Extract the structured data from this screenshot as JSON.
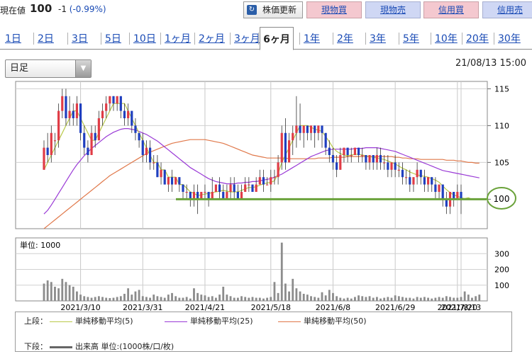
{
  "header": {
    "price_label": "現在値",
    "price": "100",
    "change": "-1",
    "change_pct": "(-0.99%)",
    "buttons": {
      "update": "株価更新",
      "buy_cash": "現物買",
      "sell_cash": "現物売",
      "buy_margin": "信用買",
      "sell_margin": "信用売"
    }
  },
  "tabs": [
    "1日",
    "2日",
    "3日",
    "5日",
    "10日",
    "1ヶ月",
    "2ヶ月",
    "3ヶ月",
    "6ヶ月",
    "1年",
    "2年",
    "3年",
    "5年",
    "10年",
    "20年",
    "30年"
  ],
  "selected_tab": "6ヶ月",
  "chart_type_select": "日足",
  "timestamp": "21/08/13 15:00",
  "chart_data": {
    "type": "candlestick",
    "price_axis": {
      "ticks": [
        "115",
        "110",
        "105",
        "100"
      ],
      "ylim": [
        96,
        116
      ]
    },
    "volume_axis": {
      "unit_label": "単位: 1000",
      "ticks": [
        "300",
        "200",
        "100"
      ],
      "ylim": [
        0,
        400
      ]
    },
    "date_labels": [
      "2021/3/10",
      "2021/3/31",
      "2021/4/21",
      "2021/5/18",
      "2021/6/8",
      "2021/6/29",
      "2021/7/20",
      "2021/8/13"
    ],
    "support_line_value": 100,
    "highlight_label": "100",
    "candles": [
      {
        "o": 104,
        "c": 107,
        "h": 108,
        "l": 104
      },
      {
        "o": 107,
        "c": 106,
        "h": 109,
        "l": 105
      },
      {
        "o": 106,
        "c": 109,
        "h": 110,
        "l": 105
      },
      {
        "o": 108,
        "c": 108,
        "h": 109,
        "l": 106
      },
      {
        "o": 108,
        "c": 112,
        "h": 113,
        "l": 107
      },
      {
        "o": 112,
        "c": 114,
        "h": 115,
        "l": 111
      },
      {
        "o": 114,
        "c": 111,
        "h": 115,
        "l": 110
      },
      {
        "o": 111,
        "c": 112,
        "h": 114,
        "l": 110
      },
      {
        "o": 112,
        "c": 111,
        "h": 113,
        "l": 110
      },
      {
        "o": 111,
        "c": 113,
        "h": 114,
        "l": 110
      },
      {
        "o": 113,
        "c": 109,
        "h": 113,
        "l": 108
      },
      {
        "o": 109,
        "c": 107,
        "h": 110,
        "l": 106
      },
      {
        "o": 107,
        "c": 106,
        "h": 108,
        "l": 105
      },
      {
        "o": 106,
        "c": 109,
        "h": 110,
        "l": 106
      },
      {
        "o": 109,
        "c": 108,
        "h": 110,
        "l": 107
      },
      {
        "o": 108,
        "c": 111,
        "h": 112,
        "l": 108
      },
      {
        "o": 111,
        "c": 112,
        "h": 113,
        "l": 110
      },
      {
        "o": 112,
        "c": 113,
        "h": 114,
        "l": 111
      },
      {
        "o": 113,
        "c": 114,
        "h": 114,
        "l": 112
      },
      {
        "o": 114,
        "c": 113,
        "h": 114,
        "l": 112
      },
      {
        "o": 113,
        "c": 114,
        "h": 114,
        "l": 112
      },
      {
        "o": 114,
        "c": 112,
        "h": 114,
        "l": 111
      },
      {
        "o": 112,
        "c": 111,
        "h": 113,
        "l": 110
      },
      {
        "o": 111,
        "c": 112,
        "h": 113,
        "l": 110
      },
      {
        "o": 112,
        "c": 110,
        "h": 112,
        "l": 109
      },
      {
        "o": 110,
        "c": 109,
        "h": 111,
        "l": 108
      },
      {
        "o": 109,
        "c": 108,
        "h": 109,
        "l": 107
      },
      {
        "o": 108,
        "c": 106,
        "h": 109,
        "l": 105
      },
      {
        "o": 106,
        "c": 107,
        "h": 108,
        "l": 105
      },
      {
        "o": 107,
        "c": 105,
        "h": 108,
        "l": 104
      },
      {
        "o": 105,
        "c": 105,
        "h": 106,
        "l": 104
      },
      {
        "o": 105,
        "c": 103,
        "h": 106,
        "l": 103
      },
      {
        "o": 103,
        "c": 104,
        "h": 105,
        "l": 102
      },
      {
        "o": 104,
        "c": 102,
        "h": 104,
        "l": 102
      },
      {
        "o": 102,
        "c": 103,
        "h": 103,
        "l": 101
      },
      {
        "o": 103,
        "c": 102,
        "h": 104,
        "l": 101
      },
      {
        "o": 102,
        "c": 103,
        "h": 103,
        "l": 102
      },
      {
        "o": 103,
        "c": 102,
        "h": 103,
        "l": 101
      },
      {
        "o": 102,
        "c": 101,
        "h": 102,
        "l": 100
      },
      {
        "o": 101,
        "c": 101,
        "h": 102,
        "l": 100
      },
      {
        "o": 101,
        "c": 100,
        "h": 101,
        "l": 99
      },
      {
        "o": 100,
        "c": 101,
        "h": 102,
        "l": 99
      },
      {
        "o": 101,
        "c": 100,
        "h": 102,
        "l": 98
      },
      {
        "o": 100,
        "c": 101,
        "h": 101,
        "l": 100
      },
      {
        "o": 101,
        "c": 101,
        "h": 102,
        "l": 100
      },
      {
        "o": 101,
        "c": 100,
        "h": 101,
        "l": 99
      },
      {
        "o": 100,
        "c": 101,
        "h": 103,
        "l": 100
      },
      {
        "o": 101,
        "c": 102,
        "h": 102,
        "l": 101
      },
      {
        "o": 102,
        "c": 101,
        "h": 103,
        "l": 100
      },
      {
        "o": 101,
        "c": 100,
        "h": 102,
        "l": 100
      },
      {
        "o": 100,
        "c": 101,
        "h": 102,
        "l": 100
      },
      {
        "o": 101,
        "c": 102,
        "h": 103,
        "l": 100
      },
      {
        "o": 102,
        "c": 101,
        "h": 103,
        "l": 100
      },
      {
        "o": 101,
        "c": 100,
        "h": 102,
        "l": 100
      },
      {
        "o": 100,
        "c": 101,
        "h": 102,
        "l": 100
      },
      {
        "o": 101,
        "c": 102,
        "h": 103,
        "l": 101
      },
      {
        "o": 102,
        "c": 102,
        "h": 103,
        "l": 101
      },
      {
        "o": 102,
        "c": 101,
        "h": 102,
        "l": 101
      },
      {
        "o": 101,
        "c": 102,
        "h": 103,
        "l": 101
      },
      {
        "o": 102,
        "c": 103,
        "h": 104,
        "l": 102
      },
      {
        "o": 103,
        "c": 102,
        "h": 104,
        "l": 101
      },
      {
        "o": 102,
        "c": 102,
        "h": 103,
        "l": 102
      },
      {
        "o": 102,
        "c": 103,
        "h": 104,
        "l": 101
      },
      {
        "o": 103,
        "c": 103,
        "h": 104,
        "l": 102
      },
      {
        "o": 103,
        "c": 105,
        "h": 106,
        "l": 102
      },
      {
        "o": 105,
        "c": 109,
        "h": 110,
        "l": 104
      },
      {
        "o": 109,
        "c": 105,
        "h": 111,
        "l": 104
      },
      {
        "o": 105,
        "c": 108,
        "h": 109,
        "l": 105
      },
      {
        "o": 108,
        "c": 109,
        "h": 110,
        "l": 106
      },
      {
        "o": 109,
        "c": 110,
        "h": 114,
        "l": 107
      },
      {
        "o": 110,
        "c": 109,
        "h": 113,
        "l": 108
      },
      {
        "o": 109,
        "c": 110,
        "h": 110,
        "l": 107
      },
      {
        "o": 110,
        "c": 109,
        "h": 110,
        "l": 108
      },
      {
        "o": 109,
        "c": 110,
        "h": 110,
        "l": 108
      },
      {
        "o": 110,
        "c": 109,
        "h": 110,
        "l": 107
      },
      {
        "o": 109,
        "c": 110,
        "h": 110,
        "l": 108
      },
      {
        "o": 110,
        "c": 109,
        "h": 110,
        "l": 107
      },
      {
        "o": 109,
        "c": 107,
        "h": 109,
        "l": 106
      },
      {
        "o": 107,
        "c": 106,
        "h": 108,
        "l": 105
      },
      {
        "o": 106,
        "c": 105,
        "h": 107,
        "l": 104
      },
      {
        "o": 105,
        "c": 104,
        "h": 106,
        "l": 103
      },
      {
        "o": 104,
        "c": 106,
        "h": 107,
        "l": 104
      },
      {
        "o": 106,
        "c": 107,
        "h": 107,
        "l": 105
      },
      {
        "o": 107,
        "c": 106,
        "h": 107,
        "l": 105
      },
      {
        "o": 106,
        "c": 106,
        "h": 107,
        "l": 105
      },
      {
        "o": 106,
        "c": 107,
        "h": 107,
        "l": 106
      },
      {
        "o": 107,
        "c": 106,
        "h": 107,
        "l": 105
      },
      {
        "o": 106,
        "c": 106,
        "h": 107,
        "l": 105
      },
      {
        "o": 106,
        "c": 105,
        "h": 106,
        "l": 104
      },
      {
        "o": 105,
        "c": 106,
        "h": 106,
        "l": 104
      },
      {
        "o": 106,
        "c": 105,
        "h": 106,
        "l": 104
      },
      {
        "o": 105,
        "c": 106,
        "h": 107,
        "l": 104
      },
      {
        "o": 106,
        "c": 105,
        "h": 107,
        "l": 104
      },
      {
        "o": 105,
        "c": 105,
        "h": 106,
        "l": 104
      },
      {
        "o": 105,
        "c": 104,
        "h": 106,
        "l": 103
      },
      {
        "o": 104,
        "c": 105,
        "h": 105,
        "l": 103
      },
      {
        "o": 105,
        "c": 104,
        "h": 106,
        "l": 103
      },
      {
        "o": 104,
        "c": 104,
        "h": 105,
        "l": 103
      },
      {
        "o": 104,
        "c": 103,
        "h": 105,
        "l": 102
      },
      {
        "o": 103,
        "c": 103,
        "h": 104,
        "l": 102
      },
      {
        "o": 103,
        "c": 102,
        "h": 104,
        "l": 101
      },
      {
        "o": 102,
        "c": 103,
        "h": 103,
        "l": 101
      },
      {
        "o": 103,
        "c": 104,
        "h": 105,
        "l": 102
      },
      {
        "o": 104,
        "c": 103,
        "h": 104,
        "l": 102
      },
      {
        "o": 103,
        "c": 102,
        "h": 104,
        "l": 101
      },
      {
        "o": 102,
        "c": 103,
        "h": 103,
        "l": 101
      },
      {
        "o": 103,
        "c": 102,
        "h": 103,
        "l": 101
      },
      {
        "o": 102,
        "c": 101,
        "h": 103,
        "l": 100
      },
      {
        "o": 101,
        "c": 102,
        "h": 102,
        "l": 100
      },
      {
        "o": 102,
        "c": 100,
        "h": 102,
        "l": 99
      },
      {
        "o": 100,
        "c": 99,
        "h": 101,
        "l": 98
      },
      {
        "o": 99,
        "c": 101,
        "h": 101,
        "l": 98
      },
      {
        "o": 101,
        "c": 100,
        "h": 101,
        "l": 99
      },
      {
        "o": 100,
        "c": 101,
        "h": 102,
        "l": 100
      },
      {
        "o": 101,
        "c": 100,
        "h": 102,
        "l": 98
      }
    ],
    "volumes": [
      110,
      130,
      120,
      90,
      80,
      140,
      120,
      100,
      90,
      60,
      40,
      30,
      25,
      20,
      25,
      30,
      25,
      20,
      18,
      20,
      25,
      30,
      45,
      80,
      40,
      60,
      70,
      30,
      25,
      20,
      40,
      30,
      25,
      20,
      40,
      50,
      30,
      20,
      20,
      25,
      15,
      80,
      50,
      40,
      35,
      25,
      30,
      20,
      40,
      90,
      40,
      30,
      20,
      20,
      30,
      25,
      20,
      25,
      20,
      20,
      15,
      20,
      25,
      120,
      50,
      370,
      110,
      60,
      140,
      80,
      60,
      45,
      40,
      30,
      25,
      20,
      55,
      35,
      70,
      50,
      30,
      20,
      15,
      20,
      15,
      25,
      35,
      30,
      25,
      30,
      20,
      25,
      15,
      20,
      25,
      20,
      35,
      30,
      25,
      20,
      20,
      15,
      25,
      20,
      25,
      20,
      15,
      20,
      25,
      20,
      30,
      25,
      20,
      20,
      25,
      60,
      40,
      20,
      30,
      40
    ],
    "ma5": [
      104,
      105,
      106,
      107,
      108,
      109,
      110,
      111,
      112,
      112,
      111,
      110,
      109,
      108,
      108,
      109,
      110,
      111,
      112,
      113,
      113,
      113,
      113,
      112,
      111,
      110,
      109,
      108,
      107,
      106,
      105,
      105,
      104,
      104,
      103,
      103,
      103,
      102,
      102,
      101.5,
      101,
      100.8,
      100.5,
      100.6,
      100.7,
      100.8,
      100.9,
      101,
      101.1,
      101.2,
      101.1,
      101,
      101,
      101,
      101.2,
      101.4,
      101.6,
      101.6,
      101.7,
      101.9,
      102.1,
      102.2,
      102.3,
      102.5,
      103.5,
      105,
      106,
      107,
      108,
      109,
      110,
      110,
      110,
      109.8,
      109.5,
      109.4,
      109.2,
      108.5,
      107.8,
      107,
      106.5,
      106.2,
      106,
      105.9,
      106,
      106.1,
      106.1,
      106,
      105.9,
      105.8,
      105.7,
      105.6,
      105.5,
      105.4,
      105.2,
      105,
      104.8,
      104.5,
      104.2,
      104,
      103.7,
      103.5,
      103.3,
      103.2,
      103.1,
      103,
      102.8,
      102.6,
      102.3,
      101.8,
      101.3,
      100.9,
      100.6,
      100.4,
      100.2,
      100.1,
      100.2,
      100
    ],
    "ma25": [
      98,
      98.5,
      99.2,
      100,
      100.8,
      101.6,
      102.4,
      103.2,
      104,
      104.7,
      105.3,
      105.9,
      106.4,
      106.9,
      107.3,
      107.7,
      108.1,
      108.5,
      108.8,
      109.1,
      109.3,
      109.5,
      109.6,
      109.6,
      109.5,
      109.4,
      109.2,
      109,
      108.8,
      108.5,
      108.2,
      107.9,
      107.5,
      107.1,
      106.7,
      106.3,
      105.9,
      105.5,
      105.1,
      104.7,
      104.3,
      104,
      103.7,
      103.4,
      103.1,
      102.8,
      102.6,
      102.4,
      102.3,
      102.2,
      102.1,
      102.1,
      102.1,
      102.2,
      102.2,
      102.3,
      102.3,
      102.4,
      102.4,
      102.5,
      102.6,
      102.7,
      102.8,
      103,
      103.2,
      103.4,
      103.7,
      104,
      104.3,
      104.6,
      104.9,
      105.2,
      105.5,
      105.8,
      106,
      106.2,
      106.4,
      106.6,
      106.7,
      106.8,
      106.8,
      106.8,
      106.8,
      106.8,
      106.8,
      106.9,
      106.9,
      106.9,
      107,
      107,
      107,
      107,
      106.9,
      106.8,
      106.7,
      106.6,
      106.5,
      106.3,
      106.1,
      105.9,
      105.7,
      105.5,
      105.3,
      105.1,
      104.9,
      104.7,
      104.5,
      104.3,
      104.1,
      103.9,
      103.8,
      103.7,
      103.6,
      103.5,
      103.4,
      103.3,
      103.2,
      103.1,
      103,
      102.9
    ],
    "ma50": [
      96,
      96.4,
      96.8,
      97.2,
      97.6,
      98,
      98.4,
      98.8,
      99.2,
      99.6,
      100,
      100.4,
      100.8,
      101.2,
      101.6,
      102,
      102.4,
      102.8,
      103.2,
      103.5,
      103.8,
      104.1,
      104.4,
      104.7,
      105,
      105.3,
      105.6,
      105.9,
      106.2,
      106.4,
      106.6,
      106.8,
      107,
      107.2,
      107.4,
      107.6,
      107.7,
      107.8,
      107.9,
      108,
      108.1,
      108.1,
      108.1,
      108.1,
      108.1,
      108,
      107.9,
      107.8,
      107.7,
      107.6,
      107.4,
      107.2,
      107,
      106.8,
      106.6,
      106.4,
      106.2,
      106,
      105.9,
      105.8,
      105.7,
      105.6,
      105.6,
      105.6,
      105.6,
      105.6,
      105.6,
      105.5,
      105.5,
      105.5,
      105.5,
      105.5,
      105.5,
      105.5,
      105.5,
      105.6,
      105.6,
      105.6,
      105.6,
      105.7,
      105.7,
      105.7,
      105.7,
      105.8,
      105.8,
      105.8,
      105.8,
      105.8,
      105.8,
      105.8,
      105.8,
      105.8,
      105.8,
      105.8,
      105.8,
      105.8,
      105.7,
      105.7,
      105.6,
      105.6,
      105.5,
      105.5,
      105.5,
      105.4,
      105.4,
      105.4,
      105.4,
      105.4,
      105.4,
      105.4,
      105.3,
      105.3,
      105.3,
      105.2,
      105.2,
      105.1,
      105,
      105,
      104.9,
      104.9
    ]
  },
  "legend": {
    "upper_label": "上段：",
    "lower_label": "下段：",
    "ma5": "単純移動平均(5)",
    "ma25": "単純移動平均(25)",
    "ma50": "単純移動平均(50)",
    "volume": "出来高 単位:(1000株/口/枚)"
  },
  "colors": {
    "up": "#e03c46",
    "down": "#1f3fbf",
    "ma5": "#b9c94a",
    "ma25": "#9a3ad6",
    "ma50": "#e0784a",
    "support": "#6aa23a",
    "volume": "#8c8c8c"
  }
}
